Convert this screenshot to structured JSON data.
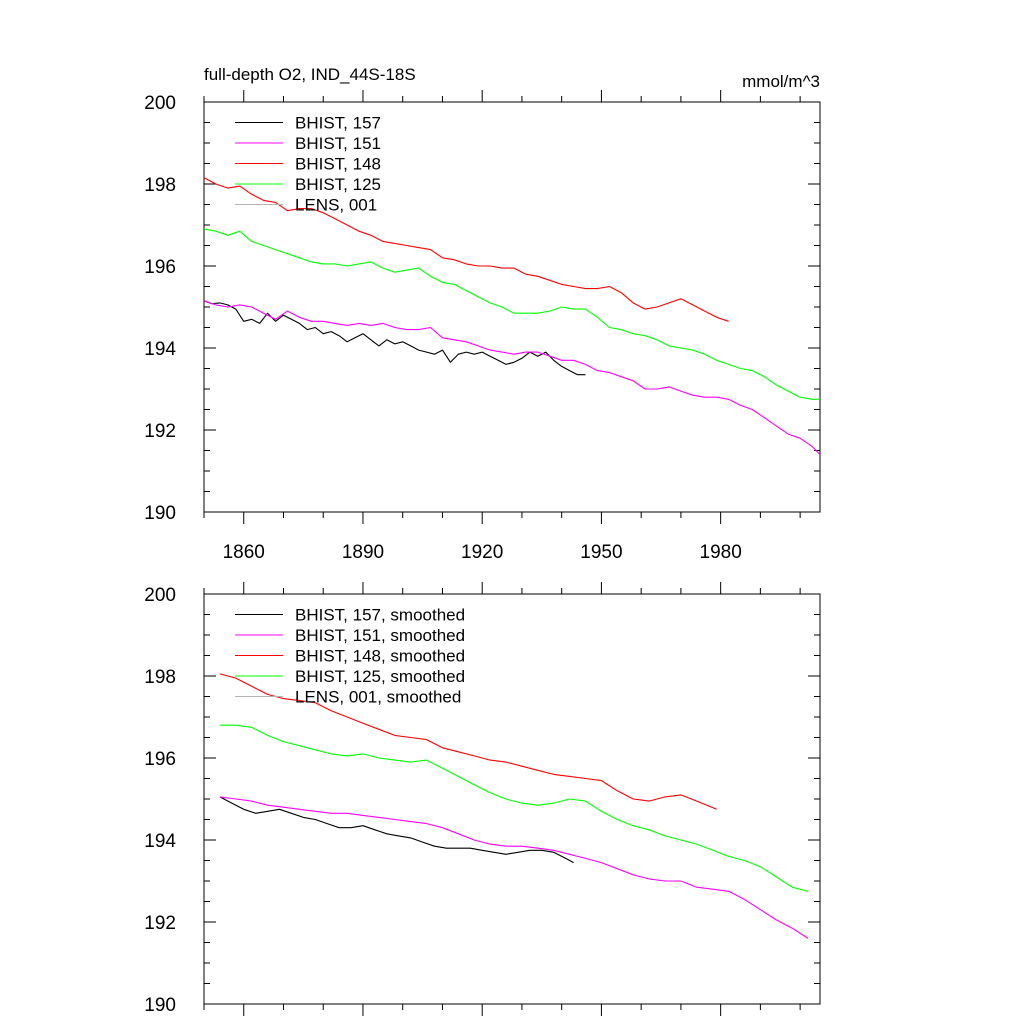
{
  "chart_data": [
    {
      "type": "line",
      "title": "full-depth O2, IND_44S-18S",
      "units": "mmol/m^3",
      "xlabel": "",
      "ylabel": "",
      "xlim": [
        1850,
        2005
      ],
      "ylim": [
        190,
        200
      ],
      "x_ticks": [
        1860,
        1890,
        1920,
        1950,
        1980
      ],
      "x_tick_labels": [
        "1860",
        "1890",
        "1920",
        "1950",
        "1980"
      ],
      "y_ticks": [
        190,
        192,
        194,
        196,
        198,
        200
      ],
      "y_tick_labels": [
        "190",
        "192",
        "194",
        "196",
        "198",
        "200"
      ],
      "legend_position": "top-left",
      "series": [
        {
          "name": "BHIST, 157",
          "color": "#000000",
          "x": [
            1850,
            1852,
            1854,
            1856,
            1858,
            1860,
            1862,
            1864,
            1866,
            1868,
            1870,
            1872,
            1874,
            1876,
            1878,
            1880,
            1882,
            1884,
            1886,
            1888,
            1890,
            1892,
            1894,
            1896,
            1898,
            1900,
            1902,
            1904,
            1906,
            1908,
            1910,
            1912,
            1914,
            1916,
            1918,
            1920,
            1922,
            1924,
            1926,
            1928,
            1930,
            1932,
            1934,
            1936,
            1938,
            1940,
            1942,
            1944,
            1946
          ],
          "values": [
            195.15,
            195.08,
            195.1,
            195.05,
            194.95,
            194.65,
            194.7,
            194.6,
            194.85,
            194.65,
            194.8,
            194.7,
            194.6,
            194.45,
            194.5,
            194.35,
            194.4,
            194.3,
            194.15,
            194.25,
            194.35,
            194.2,
            194.05,
            194.2,
            194.1,
            194.15,
            194.05,
            193.95,
            193.9,
            193.85,
            193.95,
            193.65,
            193.85,
            193.9,
            193.85,
            193.9,
            193.8,
            193.7,
            193.6,
            193.65,
            193.75,
            193.9,
            193.8,
            193.9,
            193.7,
            193.55,
            193.45,
            193.35,
            193.35
          ]
        },
        {
          "name": "BHIST, 151",
          "color": "#ff00ff",
          "x": [
            1850,
            1853,
            1856,
            1859,
            1862,
            1865,
            1868,
            1871,
            1874,
            1877,
            1880,
            1883,
            1886,
            1889,
            1892,
            1895,
            1898,
            1901,
            1904,
            1907,
            1910,
            1913,
            1916,
            1919,
            1922,
            1925,
            1928,
            1931,
            1934,
            1937,
            1940,
            1943,
            1946,
            1949,
            1952,
            1955,
            1958,
            1961,
            1964,
            1967,
            1970,
            1973,
            1976,
            1979,
            1982,
            1985,
            1988,
            1991,
            1994,
            1997,
            2000,
            2003,
            2005
          ],
          "values": [
            195.15,
            195.05,
            195.0,
            195.05,
            195.0,
            194.85,
            194.7,
            194.9,
            194.75,
            194.65,
            194.65,
            194.6,
            194.55,
            194.6,
            194.55,
            194.6,
            194.5,
            194.45,
            194.45,
            194.5,
            194.25,
            194.2,
            194.15,
            194.05,
            193.95,
            193.9,
            193.85,
            193.9,
            193.9,
            193.8,
            193.7,
            193.7,
            193.6,
            193.45,
            193.4,
            193.3,
            193.2,
            193.0,
            193.0,
            193.05,
            192.95,
            192.85,
            192.8,
            192.8,
            192.75,
            192.6,
            192.5,
            192.3,
            192.1,
            191.9,
            191.8,
            191.6,
            191.4
          ]
        },
        {
          "name": "BHIST, 148",
          "color": "#ff0000",
          "x": [
            1850,
            1853,
            1856,
            1859,
            1862,
            1865,
            1868,
            1871,
            1874,
            1877,
            1880,
            1883,
            1886,
            1889,
            1892,
            1895,
            1898,
            1901,
            1904,
            1907,
            1910,
            1913,
            1916,
            1919,
            1922,
            1925,
            1928,
            1931,
            1934,
            1937,
            1940,
            1943,
            1946,
            1949,
            1952,
            1955,
            1958,
            1961,
            1964,
            1967,
            1970,
            1973,
            1976,
            1979,
            1982
          ],
          "values": [
            198.15,
            198.0,
            197.9,
            197.95,
            197.75,
            197.6,
            197.55,
            197.35,
            197.4,
            197.4,
            197.3,
            197.15,
            197.0,
            196.85,
            196.75,
            196.6,
            196.55,
            196.5,
            196.45,
            196.4,
            196.2,
            196.15,
            196.05,
            196.0,
            196.0,
            195.95,
            195.95,
            195.8,
            195.75,
            195.65,
            195.55,
            195.5,
            195.45,
            195.45,
            195.5,
            195.35,
            195.1,
            194.95,
            195.0,
            195.1,
            195.2,
            195.05,
            194.9,
            194.75,
            194.65
          ]
        },
        {
          "name": "BHIST, 125",
          "color": "#00ff00",
          "x": [
            1850,
            1853,
            1856,
            1859,
            1862,
            1865,
            1868,
            1871,
            1874,
            1877,
            1880,
            1883,
            1886,
            1889,
            1892,
            1895,
            1898,
            1901,
            1904,
            1907,
            1910,
            1913,
            1916,
            1919,
            1922,
            1925,
            1928,
            1931,
            1934,
            1937,
            1940,
            1943,
            1946,
            1949,
            1952,
            1955,
            1958,
            1961,
            1964,
            1967,
            1970,
            1973,
            1976,
            1979,
            1982,
            1985,
            1988,
            1991,
            1994,
            1997,
            2000,
            2003,
            2005
          ],
          "values": [
            196.9,
            196.85,
            196.75,
            196.85,
            196.6,
            196.5,
            196.4,
            196.3,
            196.2,
            196.1,
            196.05,
            196.05,
            196.0,
            196.05,
            196.1,
            195.95,
            195.85,
            195.9,
            195.95,
            195.75,
            195.6,
            195.55,
            195.4,
            195.25,
            195.1,
            195.0,
            194.85,
            194.85,
            194.85,
            194.9,
            195.0,
            194.95,
            194.95,
            194.75,
            194.5,
            194.45,
            194.35,
            194.3,
            194.2,
            194.05,
            194.0,
            193.95,
            193.85,
            193.7,
            193.6,
            193.5,
            193.45,
            193.3,
            193.1,
            192.95,
            192.8,
            192.75,
            192.75
          ]
        },
        {
          "name": "LENS, 001",
          "color": "#b4b4b4",
          "x": [],
          "values": []
        }
      ]
    },
    {
      "type": "line",
      "title": "",
      "xlabel": "",
      "ylabel": "",
      "xlim": [
        1850,
        2005
      ],
      "ylim": [
        190,
        200
      ],
      "x_ticks": [
        1860,
        1890,
        1920,
        1950,
        1980
      ],
      "x_tick_labels": [],
      "y_ticks": [
        190,
        192,
        194,
        196,
        198,
        200
      ],
      "y_tick_labels": [
        "190",
        "192",
        "194",
        "196",
        "198",
        "200"
      ],
      "legend_position": "top-left",
      "series": [
        {
          "name": "BHIST, 157, smoothed",
          "color": "#000000",
          "x": [
            1854,
            1857,
            1860,
            1863,
            1866,
            1869,
            1872,
            1875,
            1878,
            1881,
            1884,
            1887,
            1890,
            1893,
            1896,
            1899,
            1902,
            1905,
            1908,
            1911,
            1914,
            1917,
            1920,
            1923,
            1926,
            1929,
            1932,
            1935,
            1938,
            1941,
            1943
          ],
          "values": [
            195.05,
            194.9,
            194.75,
            194.65,
            194.7,
            194.75,
            194.65,
            194.55,
            194.5,
            194.4,
            194.3,
            194.3,
            194.35,
            194.25,
            194.15,
            194.1,
            194.05,
            193.95,
            193.85,
            193.8,
            193.8,
            193.8,
            193.75,
            193.7,
            193.65,
            193.7,
            193.75,
            193.75,
            193.7,
            193.55,
            193.45
          ]
        },
        {
          "name": "BHIST, 151, smoothed",
          "color": "#ff00ff",
          "x": [
            1854,
            1858,
            1862,
            1866,
            1870,
            1874,
            1878,
            1882,
            1886,
            1890,
            1894,
            1898,
            1902,
            1906,
            1910,
            1914,
            1918,
            1922,
            1926,
            1930,
            1934,
            1938,
            1942,
            1946,
            1950,
            1954,
            1958,
            1962,
            1966,
            1970,
            1974,
            1978,
            1982,
            1986,
            1990,
            1994,
            1998,
            2002
          ],
          "values": [
            195.05,
            195.0,
            194.95,
            194.85,
            194.8,
            194.75,
            194.7,
            194.65,
            194.65,
            194.6,
            194.55,
            194.5,
            194.45,
            194.4,
            194.3,
            194.15,
            194.0,
            193.9,
            193.85,
            193.85,
            193.8,
            193.75,
            193.65,
            193.55,
            193.45,
            193.3,
            193.15,
            193.05,
            193.0,
            193.0,
            192.85,
            192.8,
            192.75,
            192.55,
            192.3,
            192.05,
            191.85,
            191.6
          ]
        },
        {
          "name": "BHIST, 148, smoothed",
          "color": "#ff0000",
          "x": [
            1854,
            1858,
            1862,
            1866,
            1870,
            1874,
            1878,
            1882,
            1886,
            1890,
            1894,
            1898,
            1902,
            1906,
            1910,
            1914,
            1918,
            1922,
            1926,
            1930,
            1934,
            1938,
            1942,
            1946,
            1950,
            1954,
            1958,
            1962,
            1966,
            1970,
            1974,
            1979
          ],
          "values": [
            198.05,
            197.95,
            197.75,
            197.55,
            197.45,
            197.4,
            197.35,
            197.15,
            197.0,
            196.85,
            196.7,
            196.55,
            196.5,
            196.45,
            196.25,
            196.15,
            196.05,
            195.95,
            195.9,
            195.8,
            195.7,
            195.6,
            195.55,
            195.5,
            195.45,
            195.2,
            195.0,
            194.95,
            195.05,
            195.1,
            194.95,
            194.75
          ]
        },
        {
          "name": "BHIST, 125, smoothed",
          "color": "#00ff00",
          "x": [
            1854,
            1858,
            1862,
            1866,
            1870,
            1874,
            1878,
            1882,
            1886,
            1890,
            1894,
            1898,
            1902,
            1906,
            1910,
            1914,
            1918,
            1922,
            1926,
            1930,
            1934,
            1938,
            1942,
            1946,
            1950,
            1954,
            1958,
            1962,
            1966,
            1970,
            1974,
            1978,
            1982,
            1986,
            1990,
            1994,
            1998,
            2002
          ],
          "values": [
            196.8,
            196.8,
            196.75,
            196.55,
            196.4,
            196.3,
            196.2,
            196.1,
            196.05,
            196.1,
            196.0,
            195.95,
            195.9,
            195.95,
            195.75,
            195.55,
            195.35,
            195.15,
            195.0,
            194.9,
            194.85,
            194.9,
            195.0,
            194.95,
            194.7,
            194.5,
            194.35,
            194.25,
            194.1,
            194.0,
            193.9,
            193.75,
            193.6,
            193.5,
            193.35,
            193.1,
            192.85,
            192.75
          ]
        },
        {
          "name": "LENS, 001, smoothed",
          "color": "#b4b4b4",
          "x": [],
          "values": []
        }
      ]
    }
  ]
}
